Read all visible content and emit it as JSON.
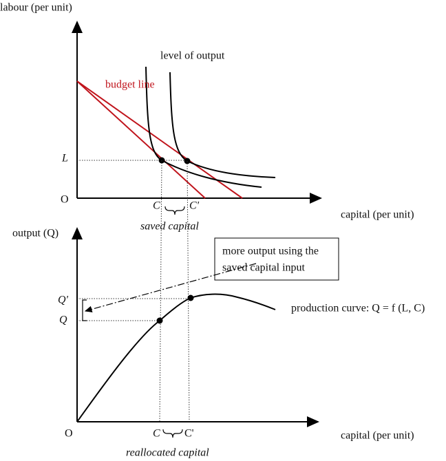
{
  "top_panel": {
    "y_axis_label": "labour (per unit)",
    "curve_label": "level of output",
    "budget_label": "budget line",
    "l_label": "L",
    "origin": "O",
    "c_label": "C",
    "c_prime_label": "C'",
    "brace_label": "saved capital",
    "x_axis_label": "capital (per unit)"
  },
  "bottom_panel": {
    "y_axis_label": "output (Q)",
    "callout_lines": [
      "more output using the",
      "saved capital input"
    ],
    "q_prime_label": "Q'",
    "q_label": "Q",
    "curve_label": "production curve: Q = f (L, C)",
    "origin": "O",
    "c_label": "C",
    "c_prime_label": "C'",
    "x_axis_label": "capital (per unit)",
    "brace_label": "reallocated capital"
  }
}
